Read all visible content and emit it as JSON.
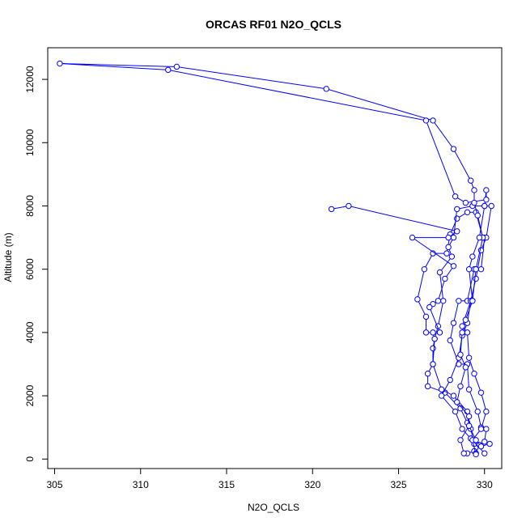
{
  "chart_data": {
    "type": "line",
    "title": "ORCAS RF01 N2O_QCLS",
    "xlabel": "N2O_QCLS",
    "ylabel": "Altitude (m)",
    "xlim": [
      304.6,
      331.0
    ],
    "ylim": [
      -300,
      13000
    ],
    "xticks": [
      305,
      310,
      315,
      320,
      325,
      330
    ],
    "yticks": [
      0,
      2000,
      4000,
      6000,
      8000,
      10000,
      12000
    ],
    "grid": false,
    "legend": "none",
    "series": [
      {
        "color": "#0000ff",
        "marker": "open-circle",
        "points": [
          [
            329.0,
            180
          ],
          [
            329.4,
            250
          ],
          [
            329.4,
            480
          ],
          [
            329.2,
            950
          ],
          [
            329.0,
            1150
          ],
          [
            328.6,
            1600
          ],
          [
            327.7,
            2100
          ],
          [
            326.7,
            2300
          ],
          [
            326.7,
            2700
          ],
          [
            327.0,
            3000
          ],
          [
            327.0,
            3500
          ],
          [
            327.1,
            3800
          ],
          [
            327.0,
            4000
          ],
          [
            326.6,
            4000
          ],
          [
            326.6,
            4500
          ],
          [
            326.1,
            5050
          ],
          [
            326.5,
            6000
          ],
          [
            327.0,
            6500
          ],
          [
            327.8,
            6500
          ],
          [
            328.0,
            7100
          ],
          [
            328.4,
            7600
          ],
          [
            329.0,
            7800
          ],
          [
            329.5,
            7800
          ],
          [
            329.9,
            7000
          ],
          [
            330.0,
            7000
          ],
          [
            329.8,
            6000
          ],
          [
            329.4,
            6000
          ],
          [
            329.0,
            5000
          ],
          [
            328.5,
            5000
          ],
          [
            328.2,
            4300
          ],
          [
            328.0,
            3750
          ],
          [
            328.5,
            3000
          ],
          [
            329.0,
            3000
          ],
          [
            329.1,
            2200
          ],
          [
            329.6,
            1500
          ],
          [
            329.8,
            1000
          ],
          [
            330.1,
            950
          ],
          [
            330.0,
            550
          ],
          [
            329.7,
            450
          ],
          [
            329.5,
            180
          ]
        ]
      },
      {
        "color": "#0000ff",
        "marker": "open-circle",
        "points": [
          [
            328.8,
            180
          ],
          [
            328.6,
            600
          ],
          [
            329.1,
            1050
          ],
          [
            329.0,
            1500
          ],
          [
            328.2,
            2000
          ],
          [
            327.5,
            2200
          ],
          [
            327.0,
            3000
          ],
          [
            327.1,
            3800
          ],
          [
            327.3,
            4200
          ],
          [
            327.6,
            5000
          ],
          [
            327.4,
            5900
          ],
          [
            328.1,
            6400
          ],
          [
            327.9,
            6700
          ],
          [
            328.2,
            7000
          ],
          [
            328.4,
            7900
          ],
          [
            329.3,
            8000
          ],
          [
            330.0,
            8000
          ],
          [
            330.4,
            8000
          ],
          [
            330.1,
            7000
          ],
          [
            329.8,
            6600
          ],
          [
            329.5,
            5700
          ],
          [
            329.2,
            5000
          ],
          [
            329.0,
            4300
          ],
          [
            328.7,
            3900
          ],
          [
            328.5,
            3200
          ],
          [
            328.0,
            2500
          ],
          [
            327.5,
            2000
          ],
          [
            328.3,
            1500
          ],
          [
            328.7,
            950
          ],
          [
            329.2,
            650
          ],
          [
            330.0,
            180
          ]
        ]
      },
      {
        "color": "#0000ff",
        "marker": "open-circle",
        "points": [
          [
            329.5,
            150
          ],
          [
            329.3,
            600
          ],
          [
            329.8,
            950
          ],
          [
            330.1,
            1500
          ],
          [
            329.8,
            2100
          ],
          [
            329.4,
            2700
          ],
          [
            329.1,
            3200
          ],
          [
            329.0,
            4000
          ],
          [
            328.7,
            4200
          ],
          [
            329.2,
            5000
          ],
          [
            329.3,
            5000
          ],
          [
            329.5,
            6000
          ],
          [
            329.9,
            7000
          ],
          [
            329.6,
            7700
          ],
          [
            329.4,
            8100
          ],
          [
            329.4,
            8500
          ],
          [
            329.2,
            8800
          ],
          [
            328.2,
            9800
          ],
          [
            327.0,
            10700
          ],
          [
            320.8,
            11700
          ],
          [
            312.1,
            12400
          ],
          [
            305.3,
            12500
          ],
          [
            311.6,
            12300
          ],
          [
            326.6,
            10700
          ],
          [
            328.3,
            8300
          ],
          [
            328.9,
            8100
          ],
          [
            330.1,
            8200
          ],
          [
            330.1,
            8500
          ],
          [
            330.0,
            8000
          ],
          [
            329.7,
            7000
          ],
          [
            329.3,
            6400
          ],
          [
            329.1,
            6000
          ],
          [
            329.3,
            5000
          ],
          [
            328.9,
            4400
          ],
          [
            328.7,
            4000
          ],
          [
            328.6,
            3300
          ],
          [
            328.9,
            2900
          ],
          [
            328.6,
            2300
          ],
          [
            328.4,
            1800
          ],
          [
            329.1,
            1350
          ],
          [
            329.1,
            1050
          ],
          [
            329.5,
            600
          ],
          [
            329.8,
            400
          ],
          [
            330.3,
            480
          ]
        ]
      },
      {
        "color": "#0000ff",
        "marker": "open-circle",
        "points": [
          [
            321.1,
            7900
          ],
          [
            322.1,
            8000
          ],
          [
            328.4,
            7200
          ],
          [
            327.9,
            7000
          ],
          [
            325.8,
            7000
          ],
          [
            328.2,
            6100
          ],
          [
            327.7,
            5700
          ],
          [
            327.3,
            5000
          ],
          [
            327.0,
            4900
          ],
          [
            326.8,
            4800
          ],
          [
            327.4,
            4000
          ]
        ]
      }
    ]
  }
}
